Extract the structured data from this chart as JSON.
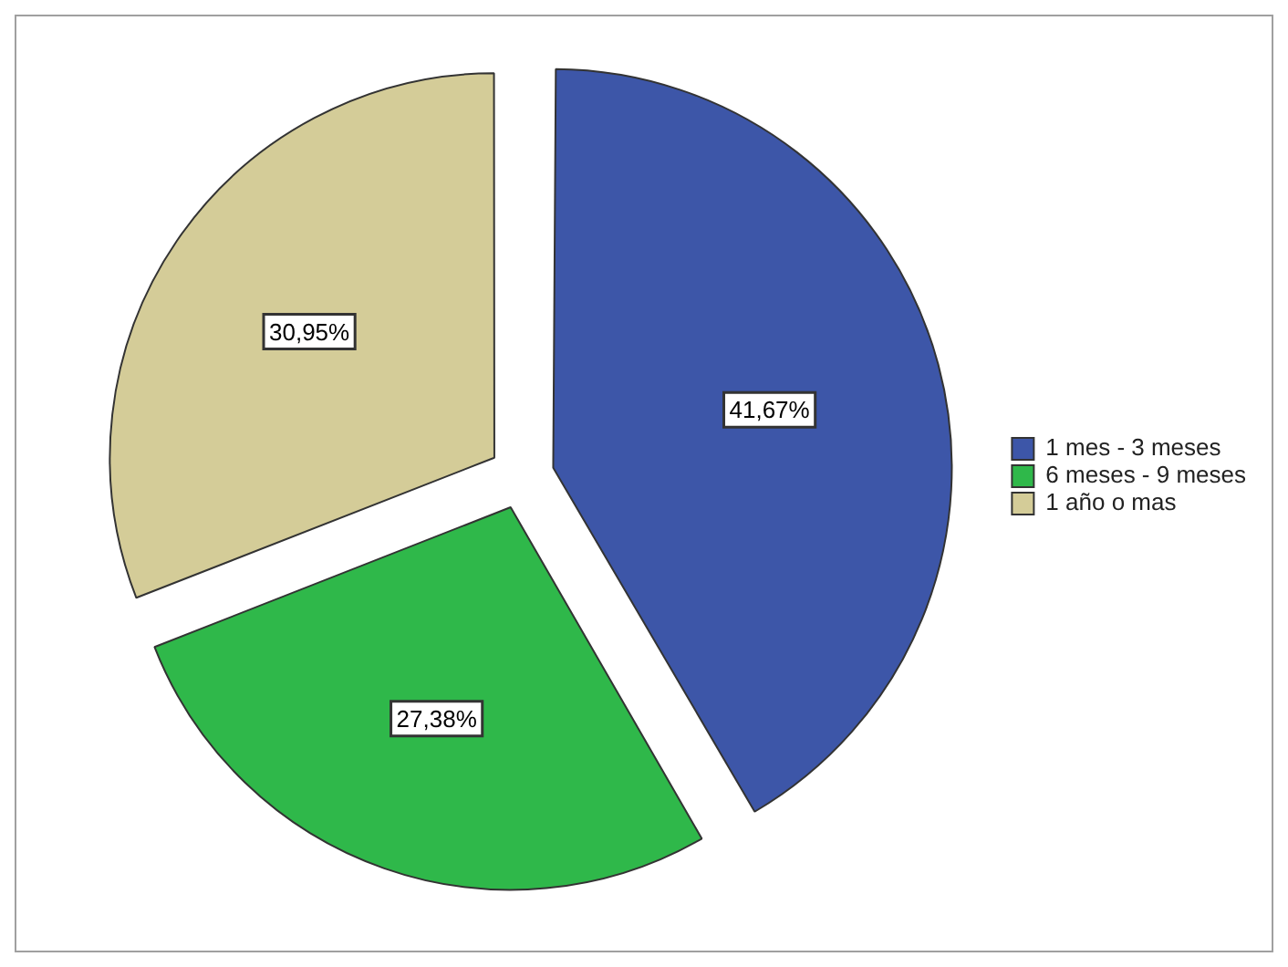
{
  "chart_data": {
    "type": "pie",
    "categories": [
      "1 mes - 3 meses",
      "6 meses - 9 meses",
      "1 año o mas"
    ],
    "values": [
      41.67,
      27.38,
      30.95
    ],
    "colors": [
      "#3d56a8",
      "#2fb84a",
      "#d4cc98"
    ],
    "value_labels": [
      "41,67%",
      "27,38%",
      "30,95%"
    ],
    "legend": "right"
  }
}
